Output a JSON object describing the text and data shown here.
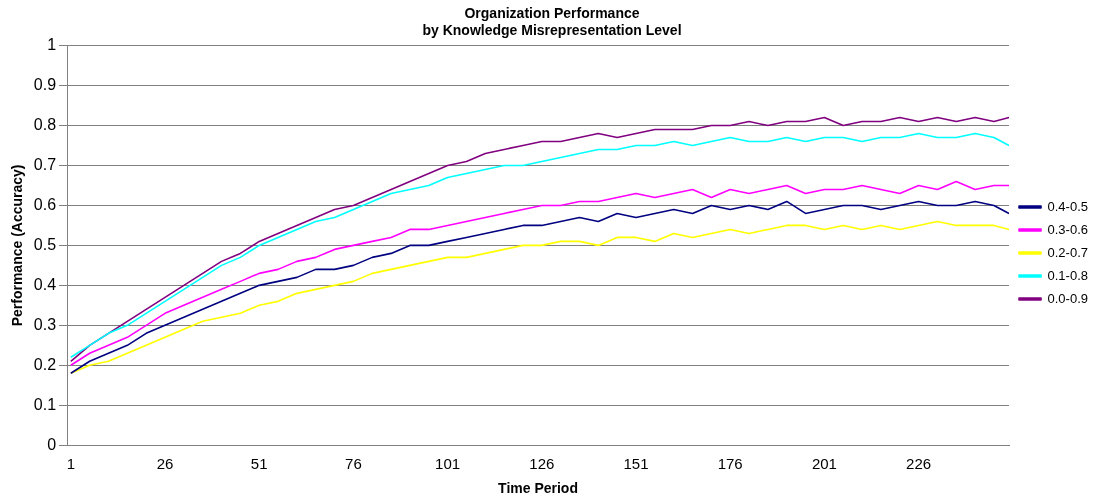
{
  "chart_data": {
    "type": "line",
    "title": "Organization Performance\nby Knowledge Misrepresentation Level",
    "xlabel": "Time Period",
    "ylabel": "Performance (Accuracy)",
    "x": [
      1,
      6,
      11,
      16,
      21,
      26,
      31,
      36,
      41,
      46,
      51,
      56,
      61,
      66,
      71,
      76,
      81,
      86,
      91,
      96,
      101,
      106,
      111,
      116,
      121,
      126,
      131,
      136,
      141,
      146,
      151,
      156,
      161,
      166,
      171,
      176,
      181,
      186,
      191,
      196,
      201,
      206,
      211,
      216,
      221,
      226,
      231,
      236,
      241,
      246,
      250
    ],
    "xlim": [
      0,
      250
    ],
    "xticks": [
      1,
      26,
      51,
      76,
      101,
      126,
      151,
      176,
      201,
      226
    ],
    "ylim": [
      0,
      1
    ],
    "yticks": [
      0,
      0.1,
      0.2,
      0.3,
      0.4,
      0.5,
      0.6,
      0.7,
      0.8,
      0.9,
      1
    ],
    "grid": "y",
    "legend": "right",
    "marker": "none",
    "line_style": "solid",
    "series": [
      {
        "name": "0.4-0.5",
        "color": "#000080",
        "values": [
          0.18,
          0.21,
          0.23,
          0.25,
          0.28,
          0.3,
          0.32,
          0.34,
          0.36,
          0.38,
          0.4,
          0.41,
          0.42,
          0.44,
          0.44,
          0.45,
          0.47,
          0.48,
          0.5,
          0.5,
          0.51,
          0.52,
          0.53,
          0.54,
          0.55,
          0.55,
          0.56,
          0.57,
          0.56,
          0.58,
          0.57,
          0.58,
          0.59,
          0.58,
          0.6,
          0.59,
          0.6,
          0.59,
          0.61,
          0.58,
          0.59,
          0.6,
          0.6,
          0.59,
          0.6,
          0.61,
          0.6,
          0.6,
          0.61,
          0.6,
          0.58
        ]
      },
      {
        "name": "0.3-0.6",
        "color": "#ff00ff",
        "values": [
          0.2,
          0.23,
          0.25,
          0.27,
          0.3,
          0.33,
          0.35,
          0.37,
          0.39,
          0.41,
          0.43,
          0.44,
          0.46,
          0.47,
          0.49,
          0.5,
          0.51,
          0.52,
          0.54,
          0.54,
          0.55,
          0.56,
          0.57,
          0.58,
          0.59,
          0.6,
          0.6,
          0.61,
          0.61,
          0.62,
          0.63,
          0.62,
          0.63,
          0.64,
          0.62,
          0.64,
          0.63,
          0.64,
          0.65,
          0.63,
          0.64,
          0.64,
          0.65,
          0.64,
          0.63,
          0.65,
          0.64,
          0.66,
          0.64,
          0.65,
          0.65
        ]
      },
      {
        "name": "0.2-0.7",
        "color": "#ffff00",
        "values": [
          0.18,
          0.2,
          0.21,
          0.23,
          0.25,
          0.27,
          0.29,
          0.31,
          0.32,
          0.33,
          0.35,
          0.36,
          0.38,
          0.39,
          0.4,
          0.41,
          0.43,
          0.44,
          0.45,
          0.46,
          0.47,
          0.47,
          0.48,
          0.49,
          0.5,
          0.5,
          0.51,
          0.51,
          0.5,
          0.52,
          0.52,
          0.51,
          0.53,
          0.52,
          0.53,
          0.54,
          0.53,
          0.54,
          0.55,
          0.55,
          0.54,
          0.55,
          0.54,
          0.55,
          0.54,
          0.55,
          0.56,
          0.55,
          0.55,
          0.55,
          0.54
        ]
      },
      {
        "name": "0.1-0.8",
        "color": "#00ffff",
        "values": [
          0.22,
          0.25,
          0.28,
          0.3,
          0.33,
          0.36,
          0.39,
          0.42,
          0.45,
          0.47,
          0.5,
          0.52,
          0.54,
          0.56,
          0.57,
          0.59,
          0.61,
          0.63,
          0.64,
          0.65,
          0.67,
          0.68,
          0.69,
          0.7,
          0.7,
          0.71,
          0.72,
          0.73,
          0.74,
          0.74,
          0.75,
          0.75,
          0.76,
          0.75,
          0.76,
          0.77,
          0.76,
          0.76,
          0.77,
          0.76,
          0.77,
          0.77,
          0.76,
          0.77,
          0.77,
          0.78,
          0.77,
          0.77,
          0.78,
          0.77,
          0.75
        ]
      },
      {
        "name": "0.0-0.9",
        "color": "#800080",
        "values": [
          0.21,
          0.25,
          0.28,
          0.31,
          0.34,
          0.37,
          0.4,
          0.43,
          0.46,
          0.48,
          0.51,
          0.53,
          0.55,
          0.57,
          0.59,
          0.6,
          0.62,
          0.64,
          0.66,
          0.68,
          0.7,
          0.71,
          0.73,
          0.74,
          0.75,
          0.76,
          0.76,
          0.77,
          0.78,
          0.77,
          0.78,
          0.79,
          0.79,
          0.79,
          0.8,
          0.8,
          0.81,
          0.8,
          0.81,
          0.81,
          0.82,
          0.8,
          0.81,
          0.81,
          0.82,
          0.81,
          0.82,
          0.81,
          0.82,
          0.81,
          0.82
        ]
      }
    ]
  }
}
